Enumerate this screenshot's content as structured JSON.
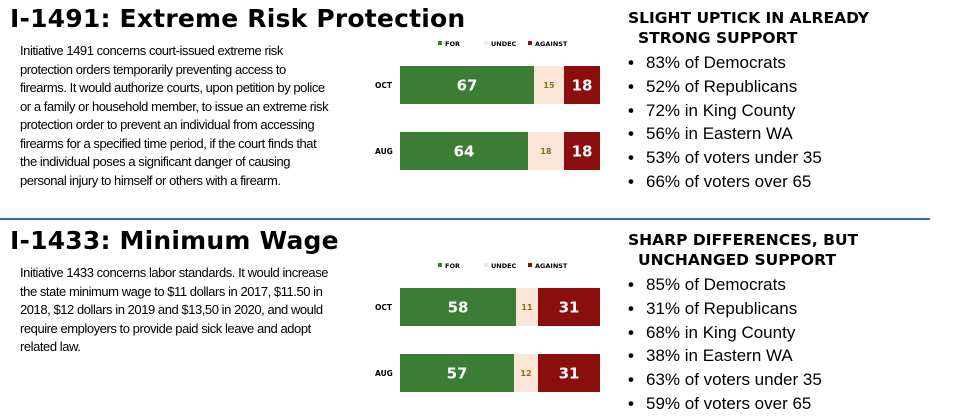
{
  "sections": [
    {
      "title": "I-1491: Extreme Risk Protection",
      "description": "Initiative 1491 concerns court-issued extreme risk protection orders temporarily preventing access to firearms. It would authorize courts, upon petition by police or a family or household member, to issue an extreme risk protection order to prevent an individual from accessing firearms for a specified time period, if the court finds that the individual poses a significant danger of causing personal injury to himself or others with a firearm.",
      "heading_line1": "SLIGHT UPTICK IN ALREADY",
      "heading_line2": "STRONG SUPPORT",
      "bullets": [
        "83% of Democrats",
        "52% of Republicans",
        "72% in King County",
        "56% in Eastern WA",
        "53% of voters under 35",
        "66% of voters over 65"
      ]
    },
    {
      "title": "I-1433: Minimum Wage",
      "description": "Initiative 1433 concerns labor standards. It would increase the state minimum wage to $11 dollars in 2017, $11.50 in 2018, $12 dollars in 2019 and $13,50 in 2020, and would require employers to provide paid sick leave and adopt related law.",
      "heading_line1": "SHARP DIFFERENCES, BUT",
      "heading_line2": "UNCHANGED SUPPORT",
      "bullets": [
        "85% of Democrats",
        "31% of Republicans",
        "68% in King County",
        "38% in Eastern WA",
        "63% of voters under 35",
        "59% of voters over 65"
      ]
    }
  ],
  "bullet_glyph": "•",
  "chart_data": [
    {
      "type": "bar",
      "orientation": "horizontal",
      "stacked": true,
      "categories": [
        "OCT",
        "AUG"
      ],
      "series": [
        {
          "name": "FOR",
          "values": [
            67,
            64
          ],
          "color": "#3b7d34"
        },
        {
          "name": "UNDEC",
          "values": [
            15,
            18
          ],
          "color": "#fbe5d6"
        },
        {
          "name": "AGAINST",
          "values": [
            18,
            18
          ],
          "color": "#8b0e0e"
        }
      ],
      "legend": "top"
    },
    {
      "type": "bar",
      "orientation": "horizontal",
      "stacked": true,
      "categories": [
        "OCT",
        "AUG"
      ],
      "series": [
        {
          "name": "FOR",
          "values": [
            58,
            57
          ],
          "color": "#3b7d34"
        },
        {
          "name": "UNDEC",
          "values": [
            11,
            12
          ],
          "color": "#fbe5d6"
        },
        {
          "name": "AGAINST",
          "values": [
            31,
            31
          ],
          "color": "#8b0e0e"
        }
      ],
      "legend": "top"
    }
  ]
}
